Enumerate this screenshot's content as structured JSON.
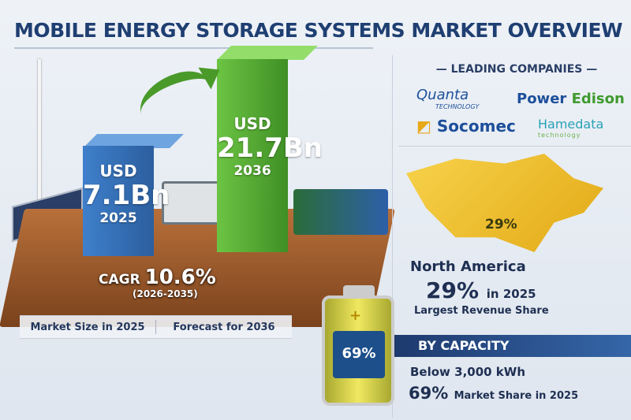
{
  "title": "MOBILE ENERGY STORAGE SYSTEMS MARKET OVERVIEW",
  "market": {
    "bar_2025": {
      "currency": "USD",
      "value": "7.1Bn",
      "year": "2025"
    },
    "bar_2036": {
      "currency": "USD",
      "value": "21.7Bn",
      "year": "2036"
    },
    "cagr_label": "CAGR",
    "cagr_value": "10.6%",
    "cagr_period": "(2026-2035)",
    "labels": [
      "Market Size in 2025",
      "Forecast for 2036"
    ]
  },
  "companies": {
    "heading": "LEADING COMPANIES",
    "quanta": {
      "name": "Quanta",
      "sub": "TECHNOLOGY"
    },
    "power_edison": {
      "part1": "Power",
      "part2": "Edison"
    },
    "socomec": "Socomec",
    "hamedata": {
      "name": "Hamedata",
      "sub": "technology"
    }
  },
  "region": {
    "map_label": "29%",
    "name": "North America",
    "pct": "29%",
    "pct_suffix": "in 2025",
    "desc": "Largest Revenue Share"
  },
  "capacity": {
    "heading": "BY CAPACITY",
    "segment": "Below 3,000 kWh",
    "pct": "69%",
    "pct_suffix": "Market Share in 2025",
    "battery_label": "69%",
    "battery_symbol": "+"
  },
  "colors": {
    "navy": "#1f3f72",
    "green": "#4a9a2a",
    "blue": "#2b5f9f",
    "gold": "#f0c93a"
  }
}
